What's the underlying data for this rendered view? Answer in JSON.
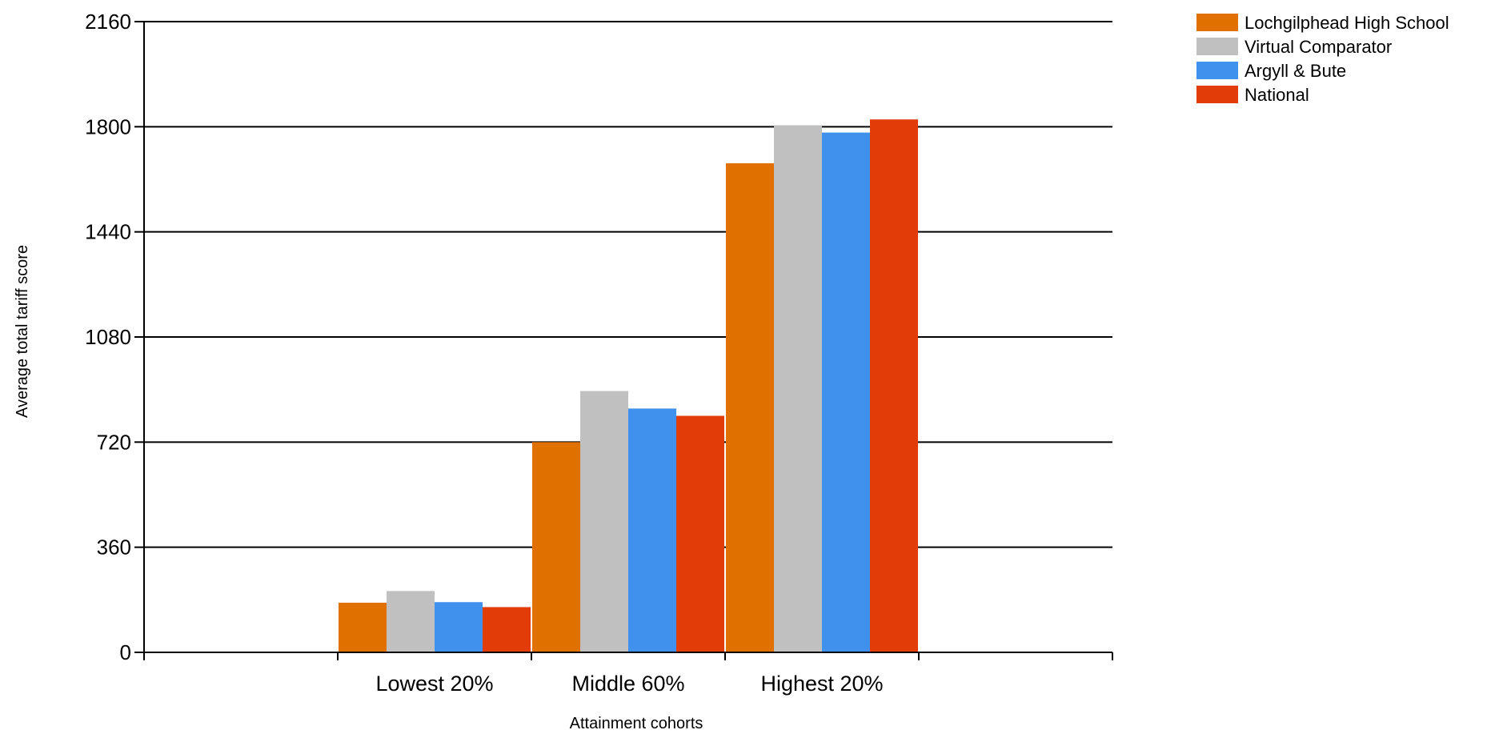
{
  "chart_data": {
    "type": "bar",
    "title": "",
    "xlabel": "Attainment cohorts",
    "ylabel": "Average total tariff score",
    "categories": [
      "Lowest 20%",
      "Middle 60%",
      "Highest 20%"
    ],
    "series": [
      {
        "name": "Lochgilphead High School",
        "color": "#e07000",
        "values": [
          170,
          720,
          1675
        ]
      },
      {
        "name": "Virtual Comparator",
        "color": "#c0c0c0",
        "values": [
          210,
          895,
          1805
        ]
      },
      {
        "name": "Argyll & Bute",
        "color": "#4090ee",
        "values": [
          172,
          835,
          1780
        ]
      },
      {
        "name": "National",
        "color": "#e23c08",
        "values": [
          155,
          810,
          1825
        ]
      }
    ],
    "ylim": [
      0,
      2160
    ],
    "yticks": [
      0,
      360,
      720,
      1080,
      1440,
      1800,
      2160
    ],
    "grid": true,
    "legend_position": "top-right"
  }
}
